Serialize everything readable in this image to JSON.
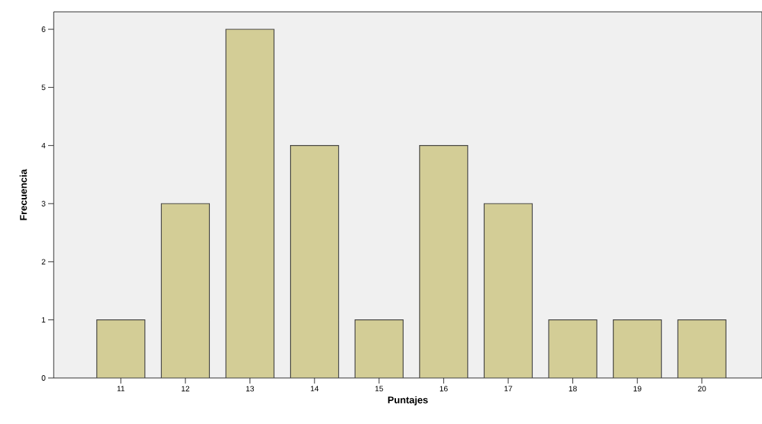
{
  "chart_data": {
    "type": "bar",
    "xlabel": "Puntajes",
    "ylabel": "Frecuencia",
    "categories": [
      "11",
      "12",
      "13",
      "14",
      "15",
      "16",
      "17",
      "18",
      "19",
      "20"
    ],
    "values": [
      1,
      3,
      6,
      4,
      1,
      4,
      3,
      1,
      1,
      1
    ],
    "color": "#d3cd96",
    "ylim": [
      0,
      6.3
    ],
    "yticks": [
      0,
      1,
      2,
      3,
      4,
      5,
      6
    ]
  }
}
